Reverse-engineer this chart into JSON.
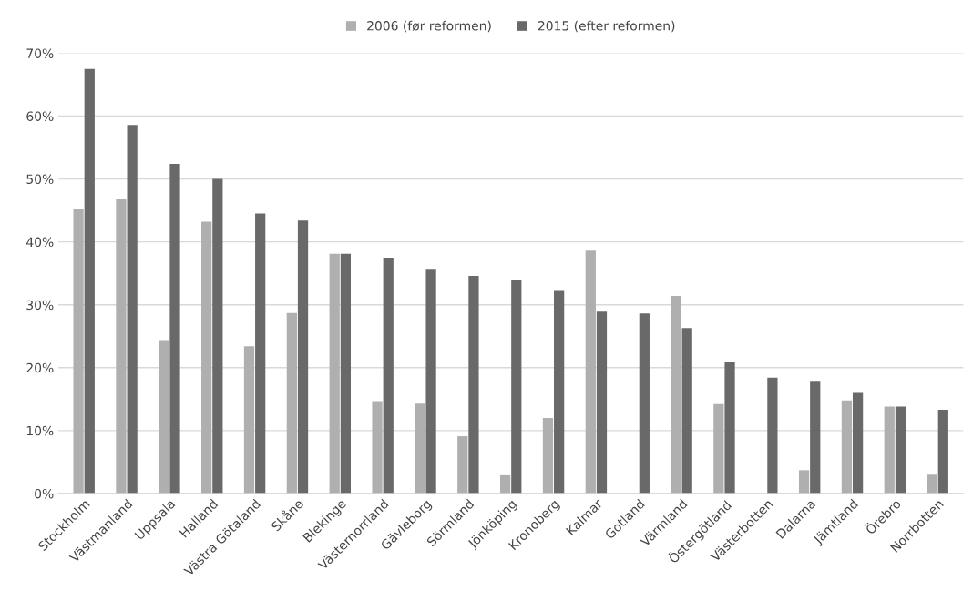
{
  "chart_data": {
    "type": "bar",
    "categories": [
      "Stockholm",
      "Västmanland",
      "Uppsala",
      "Halland",
      "Västra Götaland",
      "Skåne",
      "Blekinge",
      "Västernorrland",
      "Gävleborg",
      "Sörmland",
      "Jönköping",
      "Kronoberg",
      "Kalmar",
      "Gotland",
      "Värmland",
      "Östergötland",
      "Västerbotten",
      "Dalarna",
      "Jämtland",
      "Örebro",
      "Norrbotten"
    ],
    "series": [
      {
        "name": "2006 (før reformen)",
        "color": "#afafaf",
        "values": [
          45.3,
          46.9,
          24.4,
          43.2,
          23.4,
          28.7,
          38.1,
          14.7,
          14.3,
          9.1,
          2.9,
          12.0,
          38.6,
          null,
          31.4,
          14.2,
          null,
          3.7,
          14.8,
          13.8,
          3.0
        ]
      },
      {
        "name": "2015 (efter reformen)",
        "color": "#696969",
        "values": [
          67.5,
          58.6,
          52.4,
          50.0,
          44.5,
          43.4,
          38.1,
          37.5,
          35.7,
          34.6,
          34.0,
          32.2,
          28.9,
          28.6,
          26.3,
          20.9,
          18.4,
          17.9,
          16.0,
          13.8,
          13.3
        ]
      }
    ],
    "ylim": [
      0,
      70
    ],
    "yticks": [
      {
        "value": 0,
        "label": "0%"
      },
      {
        "value": 10,
        "label": "10%"
      },
      {
        "value": 20,
        "label": "20%"
      },
      {
        "value": 30,
        "label": "30%"
      },
      {
        "value": 40,
        "label": "40%"
      },
      {
        "value": 50,
        "label": "50%"
      },
      {
        "value": 60,
        "label": "60%"
      },
      {
        "value": 70,
        "label": "70%"
      }
    ],
    "grid": "y",
    "legend": "top"
  }
}
